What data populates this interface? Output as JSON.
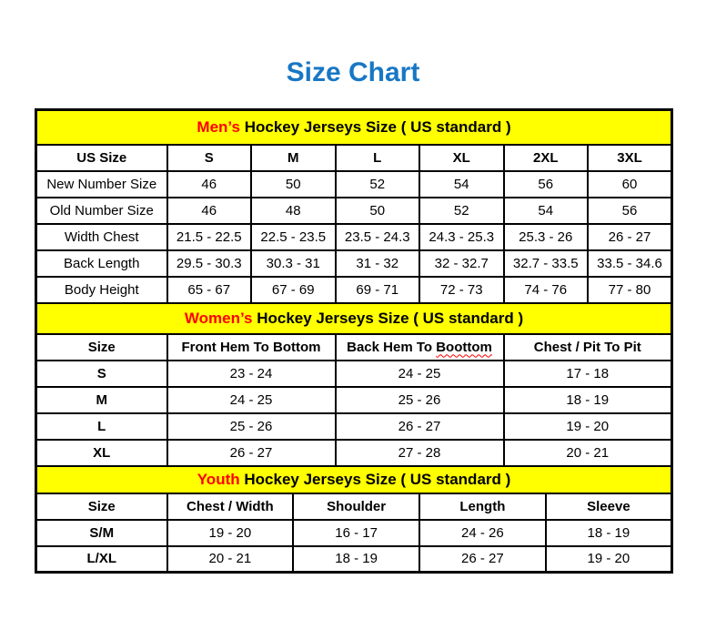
{
  "title": "Size Chart",
  "colors": {
    "title_blue": "#1877C4",
    "section_header_bg": "#FFFF00",
    "section_highlight_red": "#FF0000",
    "border": "#000000"
  },
  "mens": {
    "title_red": "Men’s",
    "title_black": "Hockey Jerseys Size ( US standard )",
    "columns": [
      "US Size",
      "S",
      "M",
      "L",
      "XL",
      "2XL",
      "3XL"
    ],
    "rows": [
      {
        "label": "New Number Size",
        "values": [
          "46",
          "50",
          "52",
          "54",
          "56",
          "60"
        ]
      },
      {
        "label": "Old Number Size",
        "values": [
          "46",
          "48",
          "50",
          "52",
          "54",
          "56"
        ]
      },
      {
        "label": "Width Chest",
        "values": [
          "21.5 - 22.5",
          "22.5 - 23.5",
          "23.5 - 24.3",
          "24.3 - 25.3",
          "25.3 - 26",
          "26 - 27"
        ]
      },
      {
        "label": "Back Length",
        "values": [
          "29.5 - 30.3",
          "30.3 - 31",
          "31 - 32",
          "32 - 32.7",
          "32.7 - 33.5",
          "33.5 - 34.6"
        ]
      },
      {
        "label": "Body Height",
        "values": [
          "65 - 67",
          "67 - 69",
          "69 - 71",
          "72 - 73",
          "74 - 76",
          "77 - 80"
        ]
      }
    ]
  },
  "womens": {
    "title_red": "Women’s",
    "title_black": "Hockey Jerseys Size ( US standard )",
    "columns": {
      "size": "Size",
      "front": "Front Hem To Bottom",
      "back_prefix": "Back Hem To",
      "back_misspelled": "Boottom",
      "chest": "Chest / Pit To Pit"
    },
    "rows": [
      {
        "label": "S",
        "values": [
          "23 - 24",
          "24 - 25",
          "17 - 18"
        ]
      },
      {
        "label": "M",
        "values": [
          "24 - 25",
          "25 - 26",
          "18 - 19"
        ]
      },
      {
        "label": "L",
        "values": [
          "25 - 26",
          "26 - 27",
          "19 - 20"
        ]
      },
      {
        "label": "XL",
        "values": [
          "26 - 27",
          "27 - 28",
          "20 - 21"
        ]
      }
    ]
  },
  "youth": {
    "title_red": "Youth",
    "title_black": "Hockey Jerseys Size ( US standard )",
    "columns": [
      "Size",
      "Chest / Width",
      "Shoulder",
      "Length",
      "Sleeve"
    ],
    "rows": [
      {
        "label": "S/M",
        "values": [
          "19 - 20",
          "16 - 17",
          "24 - 26",
          "18 - 19"
        ]
      },
      {
        "label": "L/XL",
        "values": [
          "20 - 21",
          "18 - 19",
          "26 - 27",
          "19 - 20"
        ]
      }
    ]
  }
}
